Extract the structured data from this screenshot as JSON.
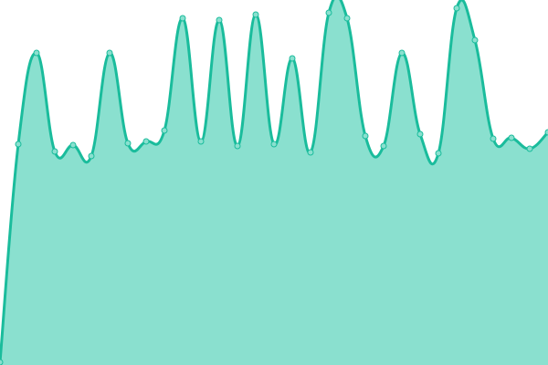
{
  "chart_data": {
    "type": "area",
    "title": "",
    "xlabel": "",
    "ylabel": "",
    "x": [
      0,
      1,
      2,
      3,
      4,
      5,
      6,
      7,
      8,
      9,
      10,
      11,
      12,
      13,
      14,
      15,
      16,
      17,
      18,
      19,
      20,
      21,
      22,
      23,
      24,
      25,
      26,
      27,
      28,
      29,
      30
    ],
    "values": [
      3,
      242,
      342,
      234,
      241,
      229,
      342,
      243,
      245,
      257,
      380,
      245,
      378,
      240,
      384,
      242,
      336,
      233,
      386,
      380,
      251,
      240,
      342,
      253,
      232,
      391,
      356,
      248,
      249,
      237,
      255
    ],
    "xlim": [
      0,
      30
    ],
    "ylim": [
      0,
      400
    ],
    "grid": false,
    "axes_visible": false,
    "smooth": true,
    "colors": {
      "line": "#1abc9c",
      "fill": "#8ae0cf",
      "marker_fill": "#8ae0cf",
      "marker_stroke": "#1abc9c"
    }
  }
}
